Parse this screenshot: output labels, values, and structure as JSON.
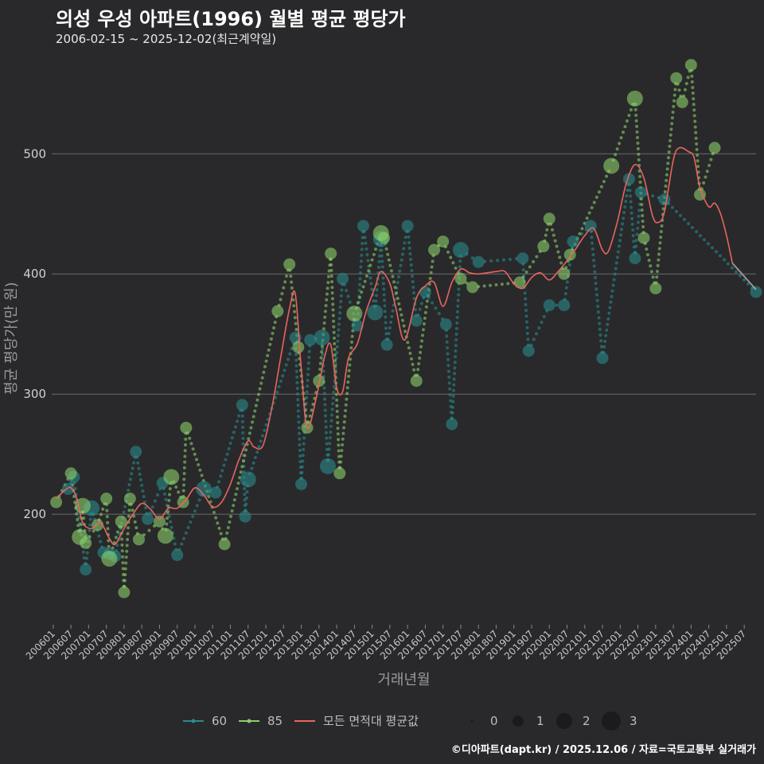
{
  "title": "의성 우성 아파트(1996) 월별 평균 평당가",
  "subtitle": "2006-02-15 ~ 2025-12-02(최근계약일)",
  "footer": "©디아파트(dapt.kr) / 2025.12.06 / 자료=국토교통부 실거래가",
  "colors": {
    "background": "#29292b",
    "grid": "#6a6a6a",
    "s60": "#2a8a8a",
    "s85": "#8ccf6a",
    "avg": "#e8645f",
    "forecast": "#b0b0b0"
  },
  "chart_data": {
    "type": "line",
    "xlabel": "거래년월",
    "ylabel": "평균 평당가(만 원)",
    "ylim": [
      108,
      585
    ],
    "y_ticks": [
      200,
      300,
      400,
      500
    ],
    "x_ticks": [
      "200601",
      "200607",
      "200701",
      "200707",
      "200801",
      "200807",
      "200901",
      "200907",
      "201001",
      "201007",
      "201101",
      "201107",
      "201201",
      "201207",
      "201301",
      "201307",
      "201401",
      "201407",
      "201501",
      "201507",
      "201601",
      "201607",
      "201701",
      "201707",
      "201801",
      "201807",
      "201901",
      "201907",
      "202001",
      "202007",
      "202101",
      "202107",
      "202201",
      "202207",
      "202301",
      "202307",
      "202401",
      "202407",
      "202501",
      "202507"
    ],
    "legend": {
      "series_labels": [
        "60",
        "85",
        "모든 면적대 평균값"
      ],
      "size_title": "",
      "size_labels": [
        "0",
        "1",
        "2",
        "3"
      ]
    },
    "series": [
      {
        "name": "60",
        "points": [
          [
            "2006-06",
            221,
            1
          ],
          [
            "2006-08",
            231,
            1
          ],
          [
            "2006-12",
            154,
            1
          ],
          [
            "2007-02",
            205,
            2
          ],
          [
            "2007-06",
            168,
            1
          ],
          [
            "2007-08",
            167,
            1
          ],
          [
            "2007-10",
            165,
            1
          ],
          [
            "2008-05",
            252,
            1
          ],
          [
            "2008-09",
            196,
            1
          ],
          [
            "2009-02",
            226,
            1
          ],
          [
            "2009-07",
            166,
            1
          ],
          [
            "2010-04",
            221,
            2
          ],
          [
            "2010-08",
            218,
            1
          ],
          [
            "2011-05",
            291,
            1
          ],
          [
            "2011-06",
            198,
            1
          ],
          [
            "2011-07",
            229,
            2
          ],
          [
            "2012-11",
            347,
            1
          ],
          [
            "2013-01",
            225,
            1
          ],
          [
            "2013-04",
            345,
            1
          ],
          [
            "2013-08",
            347,
            2
          ],
          [
            "2013-10",
            240,
            2
          ],
          [
            "2014-03",
            396,
            1
          ],
          [
            "2014-08",
            357,
            1
          ],
          [
            "2014-10",
            440,
            1
          ],
          [
            "2015-02",
            368,
            2
          ],
          [
            "2015-04",
            429,
            2
          ],
          [
            "2015-06",
            341,
            1
          ],
          [
            "2016-01",
            440,
            1
          ],
          [
            "2016-04",
            361,
            1
          ],
          [
            "2016-07",
            385,
            1
          ],
          [
            "2017-02",
            358,
            1
          ],
          [
            "2017-04",
            275,
            1
          ],
          [
            "2017-07",
            420,
            2
          ],
          [
            "2018-01",
            410,
            1
          ],
          [
            "2019-04",
            413,
            1
          ],
          [
            "2019-06",
            336,
            1
          ],
          [
            "2020-01",
            374,
            1
          ],
          [
            "2020-06",
            374,
            1
          ],
          [
            "2020-09",
            427,
            1
          ],
          [
            "2021-03",
            440,
            1
          ],
          [
            "2021-07",
            330,
            1
          ],
          [
            "2022-04",
            479,
            1
          ],
          [
            "2022-06",
            413,
            1
          ],
          [
            "2022-08",
            468,
            1
          ],
          [
            "2023-04",
            462,
            1
          ],
          [
            "2025-11",
            385,
            1
          ]
        ]
      },
      {
        "name": "85",
        "points": [
          [
            "2006-02",
            210,
            1
          ],
          [
            "2006-07",
            234,
            1
          ],
          [
            "2006-10",
            181,
            2
          ],
          [
            "2006-11",
            207,
            2
          ],
          [
            "2006-12",
            176,
            1
          ],
          [
            "2007-04",
            191,
            1
          ],
          [
            "2007-07",
            213,
            1
          ],
          [
            "2007-08",
            163,
            2
          ],
          [
            "2007-12",
            194,
            1
          ],
          [
            "2008-01",
            135,
            1
          ],
          [
            "2008-03",
            213,
            1
          ],
          [
            "2008-06",
            179,
            1
          ],
          [
            "2009-01",
            194,
            1
          ],
          [
            "2009-03",
            182,
            2
          ],
          [
            "2009-05",
            231,
            2
          ],
          [
            "2009-09",
            210,
            1
          ],
          [
            "2009-10",
            272,
            1
          ],
          [
            "2010-11",
            175,
            1
          ],
          [
            "2012-05",
            369,
            1
          ],
          [
            "2012-09",
            408,
            1
          ],
          [
            "2012-12",
            339,
            1
          ],
          [
            "2013-03",
            272,
            1
          ],
          [
            "2013-07",
            311,
            1
          ],
          [
            "2013-11",
            417,
            1
          ],
          [
            "2014-02",
            234,
            1
          ],
          [
            "2014-07",
            367,
            2
          ],
          [
            "2015-04",
            434,
            2
          ],
          [
            "2015-05",
            430,
            1
          ],
          [
            "2016-04",
            311,
            1
          ],
          [
            "2016-10",
            420,
            1
          ],
          [
            "2017-01",
            427,
            1
          ],
          [
            "2017-07",
            396,
            1
          ],
          [
            "2017-11",
            389,
            1
          ],
          [
            "2019-03",
            393,
            1
          ],
          [
            "2019-11",
            423,
            1
          ],
          [
            "2020-01",
            446,
            1
          ],
          [
            "2020-06",
            400,
            1
          ],
          [
            "2020-08",
            416,
            1
          ],
          [
            "2021-10",
            490,
            2
          ],
          [
            "2022-06",
            546,
            2
          ],
          [
            "2022-09",
            430,
            1
          ],
          [
            "2023-01",
            388,
            1
          ],
          [
            "2023-08",
            563,
            1
          ],
          [
            "2023-10",
            543,
            1
          ],
          [
            "2024-01",
            574,
            1
          ],
          [
            "2024-04",
            466,
            1
          ],
          [
            "2024-09",
            505,
            1
          ]
        ]
      },
      {
        "name": "모든 면적대 평균값",
        "points": [
          [
            "2006-02",
            213
          ],
          [
            "2006-05",
            220
          ],
          [
            "2006-07",
            222
          ],
          [
            "2006-09",
            213
          ],
          [
            "2006-11",
            193
          ],
          [
            "2007-02",
            188
          ],
          [
            "2007-05",
            193
          ],
          [
            "2007-08",
            180
          ],
          [
            "2007-10",
            175
          ],
          [
            "2008-01",
            188
          ],
          [
            "2008-04",
            200
          ],
          [
            "2008-07",
            209
          ],
          [
            "2008-10",
            204
          ],
          [
            "2009-01",
            196
          ],
          [
            "2009-04",
            205
          ],
          [
            "2009-07",
            205
          ],
          [
            "2009-10",
            212
          ],
          [
            "2010-01",
            222
          ],
          [
            "2010-04",
            216
          ],
          [
            "2010-07",
            206
          ],
          [
            "2010-10",
            210
          ],
          [
            "2011-01",
            225
          ],
          [
            "2011-04",
            246
          ],
          [
            "2011-07",
            261
          ],
          [
            "2011-09",
            256
          ],
          [
            "2011-12",
            257
          ],
          [
            "2012-03",
            288
          ],
          [
            "2012-06",
            330
          ],
          [
            "2012-09",
            371
          ],
          [
            "2012-11",
            383
          ],
          [
            "2013-01",
            321
          ],
          [
            "2013-03",
            272
          ],
          [
            "2013-06",
            296
          ],
          [
            "2013-09",
            332
          ],
          [
            "2013-11",
            341
          ],
          [
            "2014-01",
            305
          ],
          [
            "2014-03",
            302
          ],
          [
            "2014-05",
            330
          ],
          [
            "2014-08",
            342
          ],
          [
            "2014-11",
            369
          ],
          [
            "2015-02",
            389
          ],
          [
            "2015-04",
            402
          ],
          [
            "2015-07",
            392
          ],
          [
            "2015-09",
            372
          ],
          [
            "2015-12",
            345
          ],
          [
            "2016-04",
            380
          ],
          [
            "2016-07",
            390
          ],
          [
            "2016-10",
            393
          ],
          [
            "2017-01",
            373
          ],
          [
            "2017-04",
            393
          ],
          [
            "2017-07",
            404
          ],
          [
            "2017-10",
            401
          ],
          [
            "2018-01",
            400
          ],
          [
            "2018-07",
            402
          ],
          [
            "2018-10",
            402
          ],
          [
            "2019-01",
            392
          ],
          [
            "2019-04",
            388
          ],
          [
            "2019-07",
            397
          ],
          [
            "2019-10",
            401
          ],
          [
            "2020-01",
            395
          ],
          [
            "2020-04",
            402
          ],
          [
            "2020-07",
            411
          ],
          [
            "2020-10",
            421
          ],
          [
            "2021-01",
            432
          ],
          [
            "2021-04",
            438
          ],
          [
            "2021-07",
            420
          ],
          [
            "2021-09",
            419
          ],
          [
            "2021-12",
            443
          ],
          [
            "2022-03",
            475
          ],
          [
            "2022-06",
            491
          ],
          [
            "2022-09",
            480
          ],
          [
            "2022-12",
            448
          ],
          [
            "2023-02",
            443
          ],
          [
            "2023-04",
            452
          ],
          [
            "2023-07",
            495
          ],
          [
            "2023-09",
            505
          ],
          [
            "2023-12",
            502
          ],
          [
            "2024-02",
            497
          ],
          [
            "2024-04",
            472
          ],
          [
            "2024-07",
            456
          ],
          [
            "2024-09",
            459
          ],
          [
            "2024-11",
            450
          ],
          [
            "2025-01",
            432
          ],
          [
            "2025-03",
            409
          ]
        ]
      },
      {
        "name": "forecast",
        "points": [
          [
            "2025-03",
            409
          ],
          [
            "2025-11",
            387
          ]
        ]
      }
    ]
  }
}
